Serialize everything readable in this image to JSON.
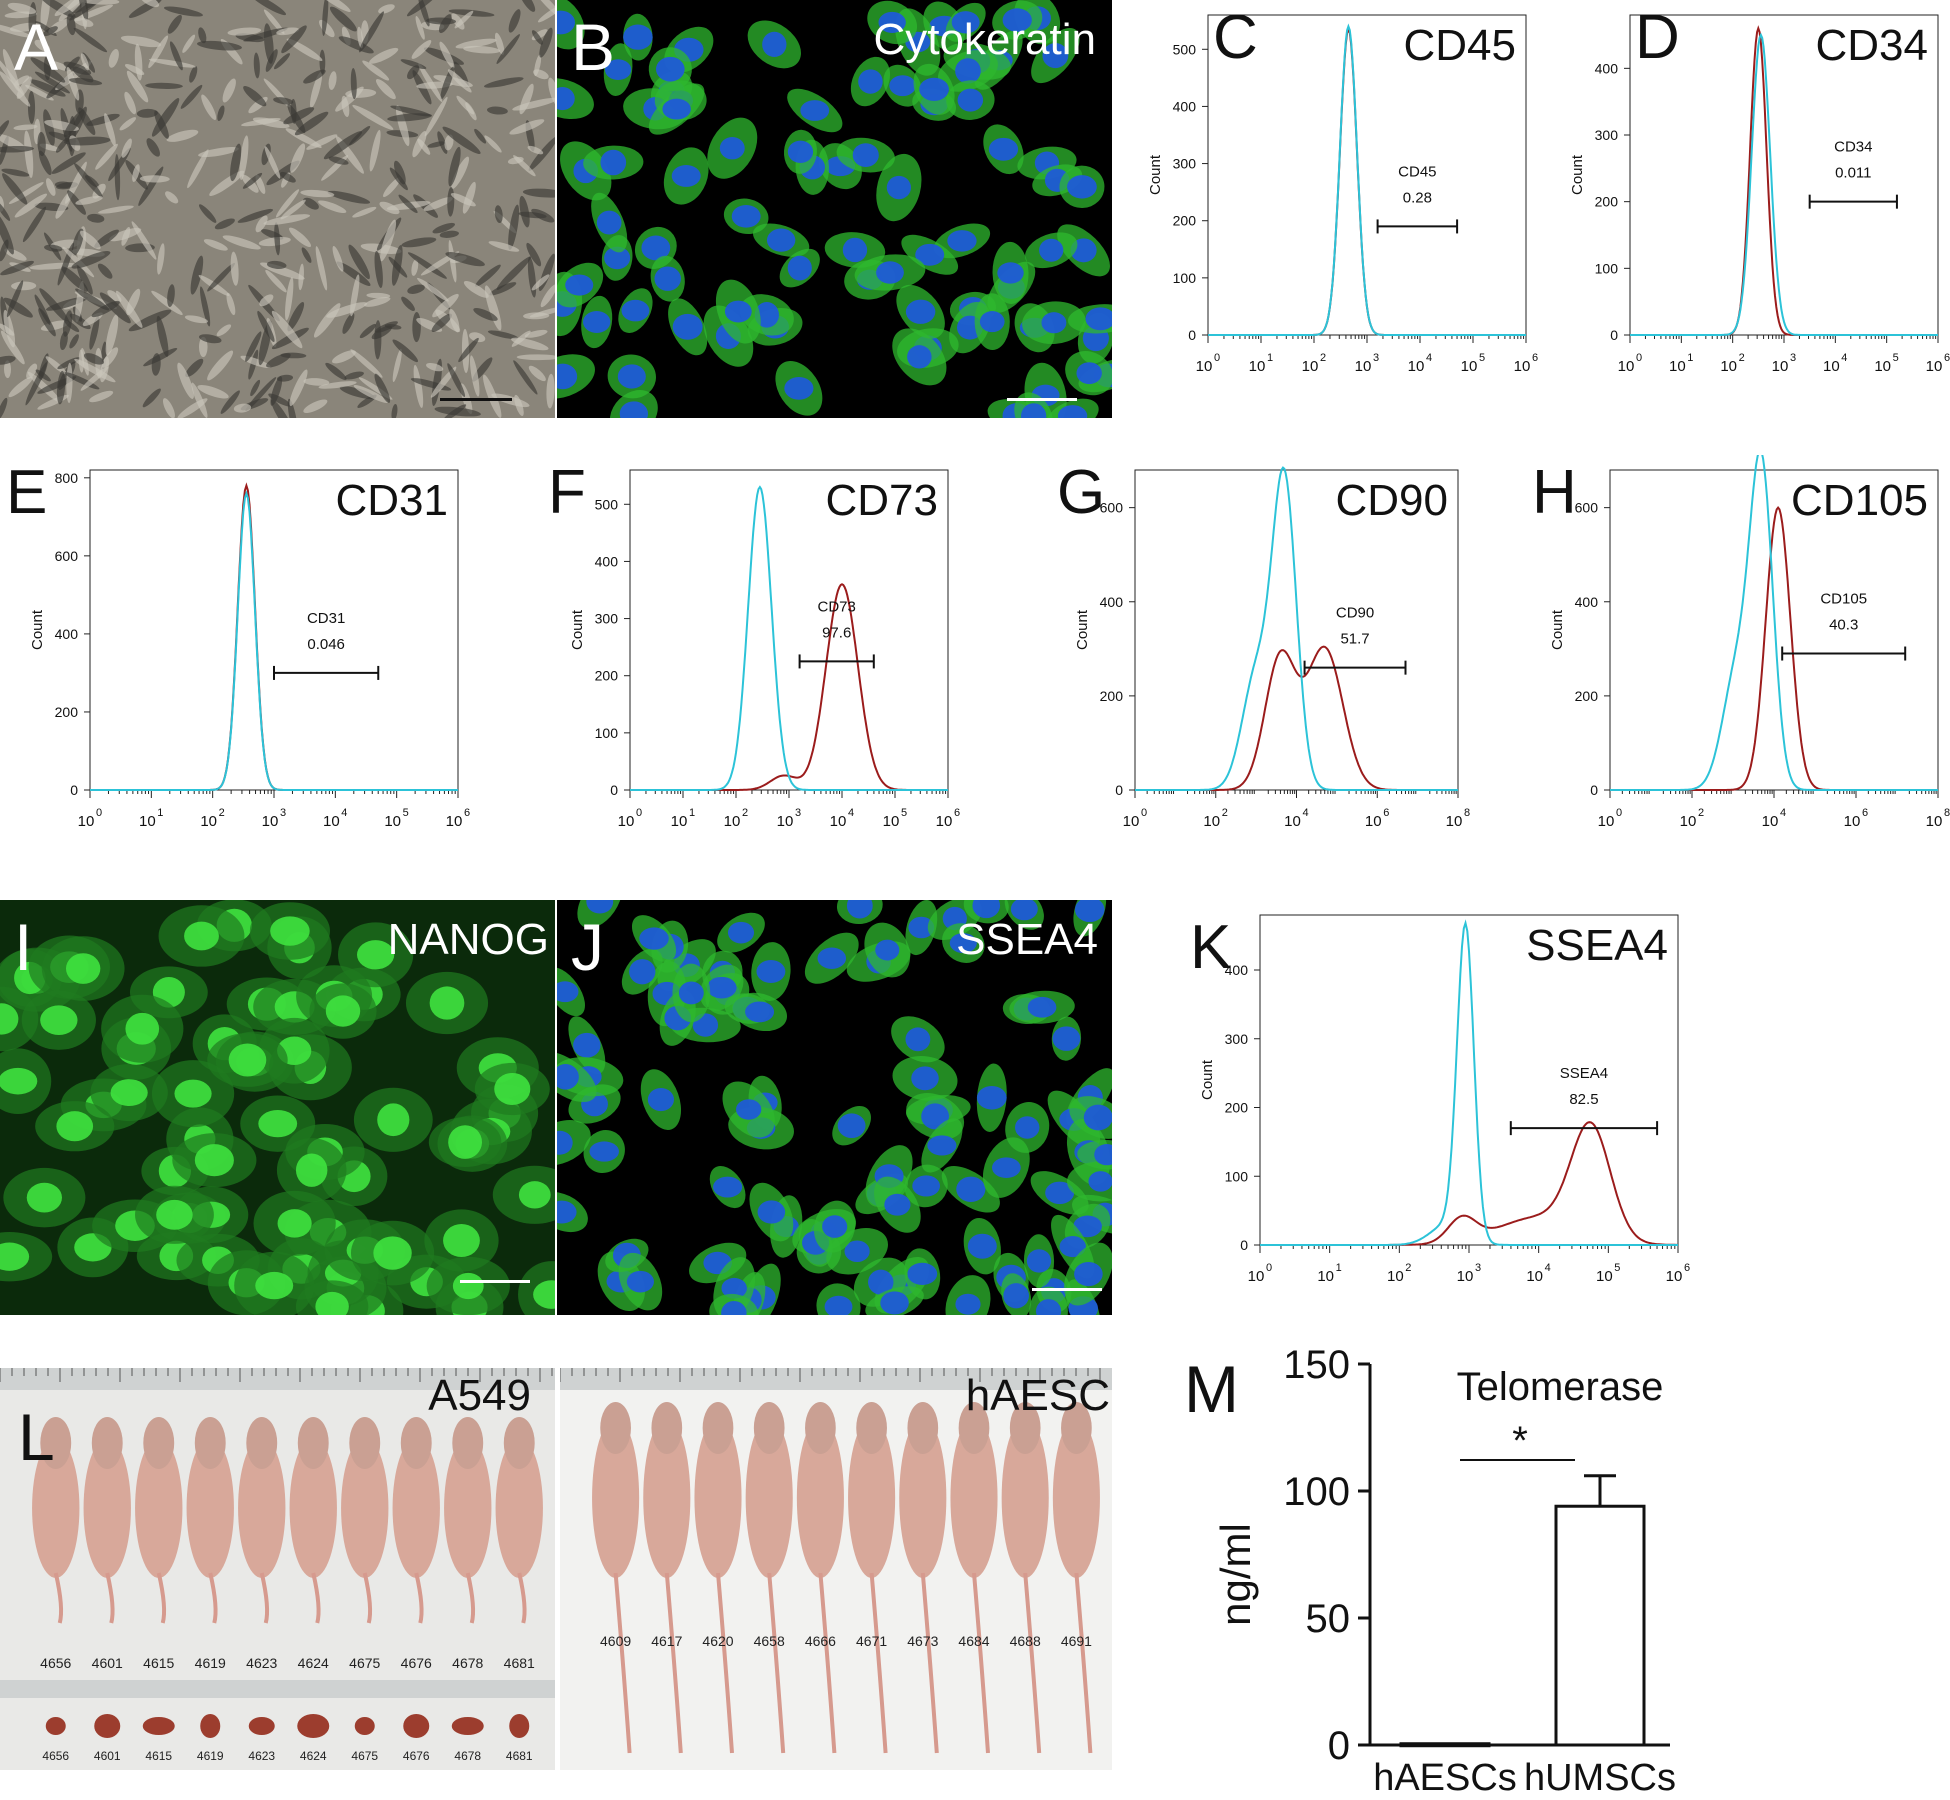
{
  "panels": {
    "A": {
      "label": "A"
    },
    "B": {
      "label": "B",
      "stain": "Cytokeratin"
    },
    "I": {
      "label": "I",
      "stain": "NANOG"
    },
    "J": {
      "label": "J",
      "stain": "SSEA4"
    },
    "L": {
      "label": "L",
      "left_title": "A549",
      "right_title": "hAESC",
      "left_ids": [
        "4656",
        "4601",
        "4615",
        "4619",
        "4623",
        "4624",
        "4675",
        "4676",
        "4678",
        "4681"
      ],
      "right_ids": [
        "4609",
        "4617",
        "4620",
        "4658",
        "4666",
        "4671",
        "4673",
        "4684",
        "4688",
        "4691"
      ]
    }
  },
  "colors": {
    "control": "#2cc3d8",
    "sample": "#9b1c1c",
    "cyto_green": "#2fb82f",
    "nucleus_blue": "#1f5bd6"
  },
  "chart_data": [
    {
      "panel": "C",
      "type": "line",
      "title": "CD45",
      "ylabel": "Count",
      "gate_label": "CD45",
      "gate_value": "0.28",
      "yticks": [
        "0",
        "100",
        "200",
        "300",
        "400",
        "500"
      ],
      "ylim": [
        0,
        560
      ],
      "xticks": [
        "0",
        "1",
        "2",
        "3",
        "4",
        "5",
        "6"
      ],
      "xlog": true,
      "xlim": [
        0,
        6
      ]
    },
    {
      "panel": "D",
      "type": "line",
      "title": "CD34",
      "ylabel": "Count",
      "gate_label": "CD34",
      "gate_value": "0.011",
      "yticks": [
        "0",
        "100",
        "200",
        "300",
        "400"
      ],
      "ylim": [
        0,
        480
      ],
      "xticks": [
        "0",
        "1",
        "2",
        "3",
        "4",
        "5",
        "6"
      ],
      "xlog": true,
      "xlim": [
        0,
        6
      ]
    },
    {
      "panel": "E",
      "type": "line",
      "title": "CD31",
      "ylabel": "Count",
      "gate_label": "CD31",
      "gate_value": "0.046",
      "yticks": [
        "0",
        "200",
        "400",
        "600",
        "800"
      ],
      "ylim": [
        0,
        820
      ],
      "xticks": [
        "0",
        "1",
        "2",
        "3",
        "4",
        "5",
        "6"
      ],
      "xlog": true,
      "xlim": [
        0,
        6
      ]
    },
    {
      "panel": "F",
      "type": "line",
      "title": "CD73",
      "ylabel": "Count",
      "gate_label": "CD73",
      "gate_value": "97.6",
      "yticks": [
        "0",
        "100",
        "200",
        "300",
        "400",
        "500"
      ],
      "ylim": [
        0,
        560
      ],
      "xticks": [
        "0",
        "1",
        "2",
        "3",
        "4",
        "5",
        "6"
      ],
      "xlog": true,
      "xlim": [
        0,
        6
      ]
    },
    {
      "panel": "G",
      "type": "line",
      "title": "CD90",
      "ylabel": "Count",
      "gate_label": "CD90",
      "gate_value": "51.7",
      "yticks": [
        "0",
        "200",
        "400",
        "600"
      ],
      "ylim": [
        0,
        680
      ],
      "xticks": [
        "0",
        "2",
        "4",
        "6",
        "8"
      ],
      "xlog": true,
      "xlim": [
        0,
        8
      ]
    },
    {
      "panel": "H",
      "type": "line",
      "title": "CD105",
      "ylabel": "Count",
      "gate_label": "CD105",
      "gate_value": "40.3",
      "yticks": [
        "0",
        "200",
        "400",
        "600"
      ],
      "ylim": [
        0,
        680
      ],
      "xticks": [
        "0",
        "2",
        "4",
        "6",
        "8"
      ],
      "xlog": true,
      "xlim": [
        0,
        8
      ]
    },
    {
      "panel": "K",
      "type": "line",
      "title": "SSEA4",
      "ylabel": "Count",
      "gate_label": "SSEA4",
      "gate_value": "82.5",
      "yticks": [
        "0",
        "100",
        "200",
        "300",
        "400"
      ],
      "ylim": [
        0,
        480
      ],
      "xticks": [
        "0",
        "1",
        "2",
        "3",
        "4",
        "5",
        "6"
      ],
      "xlog": true,
      "xlim": [
        0,
        6
      ]
    },
    {
      "panel": "M",
      "type": "bar",
      "title": "Telomerase",
      "ylabel": "ng/ml",
      "categories": [
        "hAESCs",
        "hUMSCs"
      ],
      "values": [
        0.5,
        94
      ],
      "errors": [
        0,
        12
      ],
      "ylim": [
        0,
        150
      ],
      "yticks": [
        "0",
        "50",
        "100",
        "150"
      ],
      "significance": "*"
    }
  ]
}
